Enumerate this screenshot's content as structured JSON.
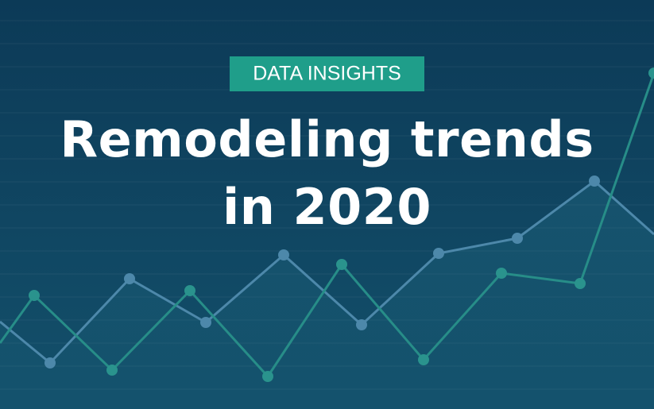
{
  "badge": "DATA INSIGHTS",
  "title": [
    "Remodeling trends",
    "in 2020"
  ]
}
